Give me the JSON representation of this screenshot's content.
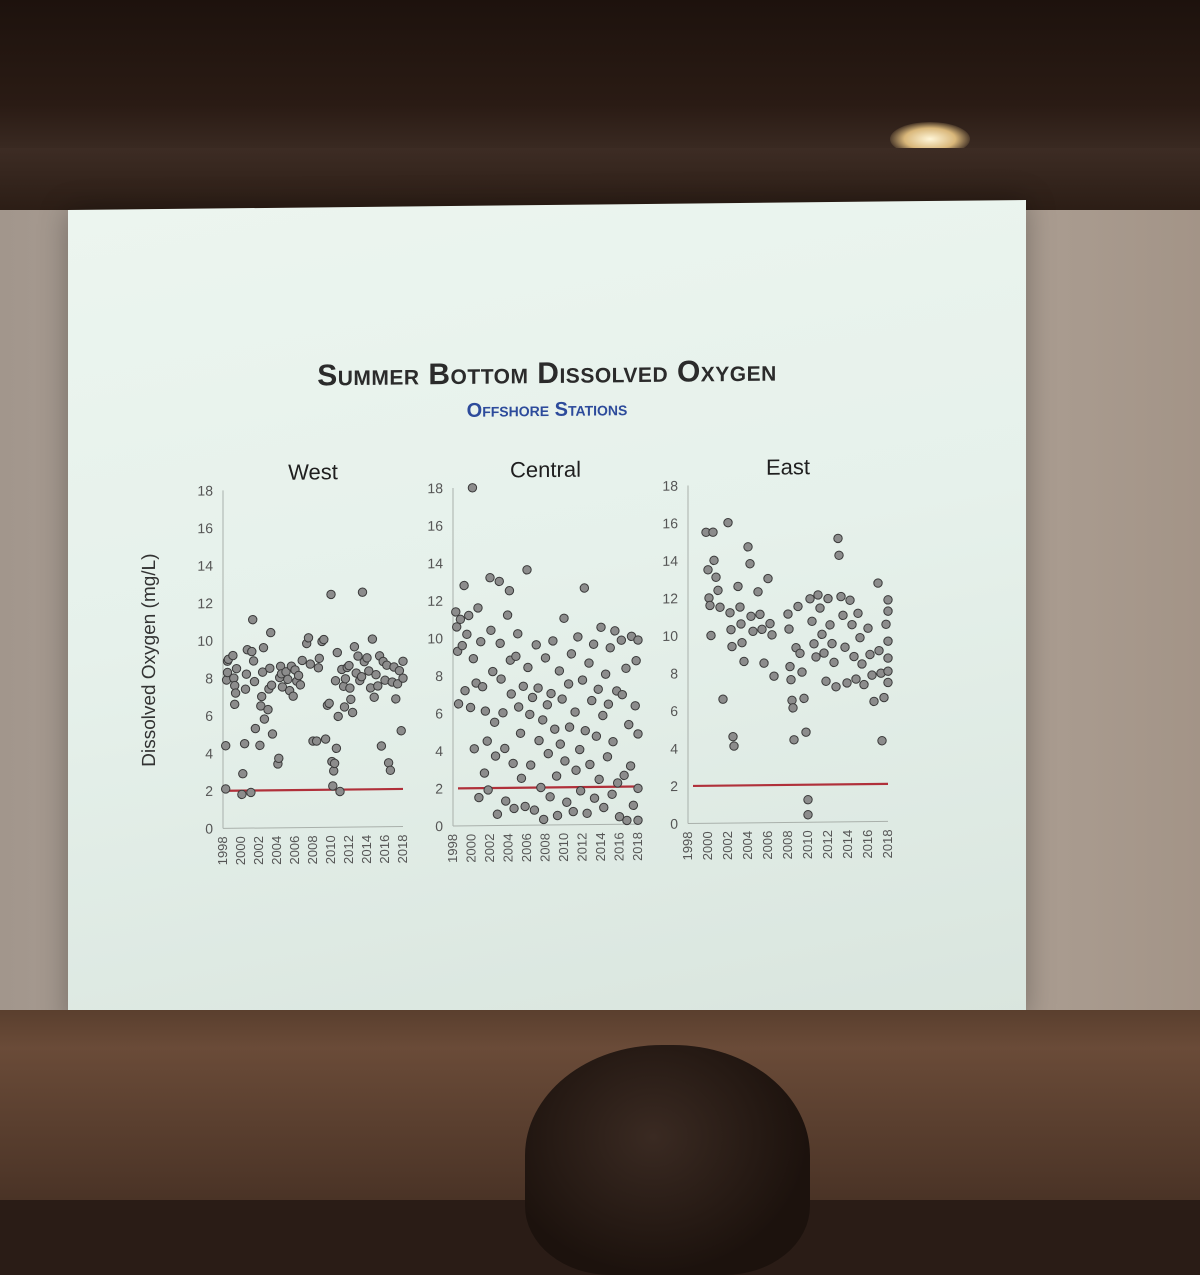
{
  "slide": {
    "title": "Summer Bottom Dissolved Oxygen",
    "subtitle": "Offshore Stations"
  },
  "colors": {
    "point_fill": "#8c8c8c",
    "point_stroke": "#3a3a3a",
    "threshold_line": "#b0303a",
    "axis": "#a9b0ab",
    "subtitle": "#2d4b9b"
  },
  "chart_data": [
    {
      "type": "scatter",
      "title": "West",
      "xlabel": "",
      "ylabel": "Dissolved Oxygen (mg/L)",
      "xlim": [
        1998,
        2018
      ],
      "ylim": [
        0,
        18
      ],
      "x_ticks": [
        "1998",
        "2000",
        "2002",
        "2004",
        "2006",
        "2008",
        "2010",
        "2012",
        "2014",
        "2016",
        "2018"
      ],
      "y_ticks": [
        "0",
        "2",
        "4",
        "6",
        "8",
        "10",
        "12",
        "14",
        "16",
        "18"
      ],
      "threshold": 2,
      "points": [
        [
          1998.3,
          2.1
        ],
        [
          1998.3,
          4.4
        ],
        [
          1998.4,
          7.9
        ],
        [
          1998.5,
          8.9
        ],
        [
          1998.5,
          8.3
        ],
        [
          1998.6,
          9.0
        ],
        [
          1999.1,
          9.2
        ],
        [
          1999.2,
          8.0
        ],
        [
          1999.3,
          7.6
        ],
        [
          1999.3,
          6.6
        ],
        [
          1999.4,
          7.2
        ],
        [
          1999.5,
          8.5
        ],
        [
          2000.1,
          1.8
        ],
        [
          2000.2,
          2.9
        ],
        [
          2000.4,
          4.5
        ],
        [
          2000.5,
          7.4
        ],
        [
          2000.6,
          8.2
        ],
        [
          2000.7,
          9.5
        ],
        [
          2001.1,
          1.9
        ],
        [
          2001.2,
          9.4
        ],
        [
          2001.3,
          11.1
        ],
        [
          2001.4,
          8.9
        ],
        [
          2001.5,
          7.8
        ],
        [
          2001.6,
          5.3
        ],
        [
          2002.1,
          4.4
        ],
        [
          2002.2,
          6.5
        ],
        [
          2002.3,
          7.0
        ],
        [
          2002.4,
          8.3
        ],
        [
          2002.5,
          9.6
        ],
        [
          2002.6,
          5.8
        ],
        [
          2003.0,
          6.3
        ],
        [
          2003.1,
          7.4
        ],
        [
          2003.2,
          8.5
        ],
        [
          2003.3,
          10.4
        ],
        [
          2003.4,
          7.6
        ],
        [
          2003.5,
          5.0
        ],
        [
          2004.1,
          3.4
        ],
        [
          2004.2,
          3.7
        ],
        [
          2004.3,
          8.0
        ],
        [
          2004.4,
          8.6
        ],
        [
          2004.5,
          8.2
        ],
        [
          2004.6,
          7.5
        ],
        [
          2005.0,
          8.3
        ],
        [
          2005.2,
          7.9
        ],
        [
          2005.4,
          7.3
        ],
        [
          2005.6,
          8.6
        ],
        [
          2005.8,
          7.0
        ],
        [
          2006.0,
          8.4
        ],
        [
          2006.2,
          7.8
        ],
        [
          2006.4,
          8.1
        ],
        [
          2006.6,
          7.6
        ],
        [
          2006.8,
          8.9
        ],
        [
          2007.3,
          9.8
        ],
        [
          2007.5,
          10.1
        ],
        [
          2007.7,
          8.7
        ],
        [
          2008.0,
          4.6
        ],
        [
          2008.4,
          4.6
        ],
        [
          2008.6,
          8.5
        ],
        [
          2008.7,
          9.0
        ],
        [
          2009.0,
          9.9
        ],
        [
          2009.2,
          10.0
        ],
        [
          2009.4,
          4.7
        ],
        [
          2009.6,
          6.5
        ],
        [
          2009.8,
          6.6
        ],
        [
          2010.0,
          12.4
        ],
        [
          2010.1,
          3.5
        ],
        [
          2010.2,
          2.2
        ],
        [
          2010.3,
          3.0
        ],
        [
          2010.4,
          3.4
        ],
        [
          2010.5,
          7.8
        ],
        [
          2010.6,
          4.2
        ],
        [
          2010.7,
          9.3
        ],
        [
          2010.8,
          5.9
        ],
        [
          2011.0,
          1.9
        ],
        [
          2011.2,
          8.4
        ],
        [
          2011.4,
          7.5
        ],
        [
          2011.5,
          6.4
        ],
        [
          2011.6,
          7.9
        ],
        [
          2011.8,
          8.5
        ],
        [
          2012.0,
          8.6
        ],
        [
          2012.1,
          7.4
        ],
        [
          2012.2,
          6.8
        ],
        [
          2012.4,
          6.1
        ],
        [
          2012.6,
          9.6
        ],
        [
          2012.8,
          8.2
        ],
        [
          2013.0,
          9.1
        ],
        [
          2013.2,
          7.8
        ],
        [
          2013.4,
          8.0
        ],
        [
          2013.5,
          12.5
        ],
        [
          2013.7,
          8.8
        ],
        [
          2014.0,
          9.0
        ],
        [
          2014.2,
          8.3
        ],
        [
          2014.4,
          7.4
        ],
        [
          2014.6,
          10.0
        ],
        [
          2014.8,
          6.9
        ],
        [
          2015.0,
          8.1
        ],
        [
          2015.2,
          7.5
        ],
        [
          2015.4,
          9.1
        ],
        [
          2015.6,
          4.3
        ],
        [
          2015.8,
          8.8
        ],
        [
          2016.0,
          7.8
        ],
        [
          2016.2,
          8.6
        ],
        [
          2016.4,
          3.4
        ],
        [
          2016.6,
          3.0
        ],
        [
          2016.8,
          7.7
        ],
        [
          2017.0,
          8.5
        ],
        [
          2017.2,
          6.8
        ],
        [
          2017.4,
          7.6
        ],
        [
          2017.6,
          8.3
        ],
        [
          2017.8,
          5.1
        ],
        [
          2018.0,
          8.8
        ],
        [
          2018.0,
          7.9
        ]
      ]
    },
    {
      "type": "scatter",
      "title": "Central",
      "xlabel": "",
      "ylabel": "",
      "xlim": [
        1998,
        2018
      ],
      "ylim": [
        0,
        18
      ],
      "x_ticks": [
        "1998",
        "2000",
        "2002",
        "2004",
        "2006",
        "2008",
        "2010",
        "2012",
        "2014",
        "2016",
        "2018"
      ],
      "y_ticks": [
        "0",
        "2",
        "4",
        "6",
        "8",
        "10",
        "12",
        "14",
        "16",
        "18"
      ],
      "threshold": 2,
      "points": [
        [
          1998.3,
          11.4
        ],
        [
          1998.4,
          10.6
        ],
        [
          1998.5,
          9.3
        ],
        [
          1998.6,
          6.5
        ],
        [
          1998.8,
          11.0
        ],
        [
          1999.0,
          9.6
        ],
        [
          1999.2,
          12.8
        ],
        [
          1999.3,
          7.2
        ],
        [
          1999.5,
          10.2
        ],
        [
          1999.7,
          11.2
        ],
        [
          1999.9,
          6.3
        ],
        [
          2000.1,
          18.0
        ],
        [
          2000.2,
          8.9
        ],
        [
          2000.3,
          4.1
        ],
        [
          2000.5,
          7.6
        ],
        [
          2000.7,
          11.6
        ],
        [
          2000.8,
          1.5
        ],
        [
          2001.0,
          9.8
        ],
        [
          2001.2,
          7.4
        ],
        [
          2001.4,
          2.8
        ],
        [
          2001.5,
          6.1
        ],
        [
          2001.7,
          4.5
        ],
        [
          2001.8,
          1.9
        ],
        [
          2002.0,
          13.2
        ],
        [
          2002.1,
          10.4
        ],
        [
          2002.3,
          8.2
        ],
        [
          2002.5,
          5.5
        ],
        [
          2002.6,
          3.7
        ],
        [
          2002.8,
          0.6
        ],
        [
          2003.0,
          13.0
        ],
        [
          2003.1,
          9.7
        ],
        [
          2003.2,
          7.8
        ],
        [
          2003.4,
          6.0
        ],
        [
          2003.6,
          4.1
        ],
        [
          2003.7,
          1.3
        ],
        [
          2003.9,
          11.2
        ],
        [
          2004.1,
          12.5
        ],
        [
          2004.2,
          8.8
        ],
        [
          2004.3,
          7.0
        ],
        [
          2004.5,
          3.3
        ],
        [
          2004.6,
          0.9
        ],
        [
          2004.8,
          9.0
        ],
        [
          2005.0,
          10.2
        ],
        [
          2005.1,
          6.3
        ],
        [
          2005.3,
          4.9
        ],
        [
          2005.4,
          2.5
        ],
        [
          2005.6,
          7.4
        ],
        [
          2005.8,
          1.0
        ],
        [
          2006.0,
          13.6
        ],
        [
          2006.1,
          8.4
        ],
        [
          2006.3,
          5.9
        ],
        [
          2006.4,
          3.2
        ],
        [
          2006.6,
          6.8
        ],
        [
          2006.8,
          0.8
        ],
        [
          2007.0,
          9.6
        ],
        [
          2007.2,
          7.3
        ],
        [
          2007.3,
          4.5
        ],
        [
          2007.5,
          2.0
        ],
        [
          2007.7,
          5.6
        ],
        [
          2007.8,
          0.3
        ],
        [
          2008.0,
          8.9
        ],
        [
          2008.2,
          6.4
        ],
        [
          2008.3,
          3.8
        ],
        [
          2008.5,
          1.5
        ],
        [
          2008.6,
          7.0
        ],
        [
          2008.8,
          9.8
        ],
        [
          2009.0,
          5.1
        ],
        [
          2009.2,
          2.6
        ],
        [
          2009.3,
          0.5
        ],
        [
          2009.5,
          8.2
        ],
        [
          2009.6,
          4.3
        ],
        [
          2009.8,
          6.7
        ],
        [
          2010.0,
          11.0
        ],
        [
          2010.1,
          3.4
        ],
        [
          2010.3,
          1.2
        ],
        [
          2010.5,
          7.5
        ],
        [
          2010.6,
          5.2
        ],
        [
          2010.8,
          9.1
        ],
        [
          2011.0,
          0.7
        ],
        [
          2011.2,
          6.0
        ],
        [
          2011.3,
          2.9
        ],
        [
          2011.5,
          10.0
        ],
        [
          2011.7,
          4.0
        ],
        [
          2011.8,
          1.8
        ],
        [
          2012.0,
          7.7
        ],
        [
          2012.2,
          12.6
        ],
        [
          2012.3,
          5.0
        ],
        [
          2012.5,
          0.6
        ],
        [
          2012.7,
          8.6
        ],
        [
          2012.8,
          3.2
        ],
        [
          2013.0,
          6.6
        ],
        [
          2013.2,
          9.6
        ],
        [
          2013.3,
          1.4
        ],
        [
          2013.5,
          4.7
        ],
        [
          2013.7,
          7.2
        ],
        [
          2013.8,
          2.4
        ],
        [
          2014.0,
          10.5
        ],
        [
          2014.2,
          5.8
        ],
        [
          2014.3,
          0.9
        ],
        [
          2014.5,
          8.0
        ],
        [
          2014.7,
          3.6
        ],
        [
          2014.8,
          6.4
        ],
        [
          2015.0,
          9.4
        ],
        [
          2015.2,
          1.6
        ],
        [
          2015.3,
          4.4
        ],
        [
          2015.5,
          10.3
        ],
        [
          2015.7,
          7.1
        ],
        [
          2015.8,
          2.2
        ],
        [
          2016.0,
          0.4
        ],
        [
          2016.2,
          9.8
        ],
        [
          2016.3,
          6.9
        ],
        [
          2016.5,
          2.6
        ],
        [
          2016.7,
          8.3
        ],
        [
          2016.8,
          0.2
        ],
        [
          2017.0,
          5.3
        ],
        [
          2017.2,
          3.1
        ],
        [
          2017.3,
          10.0
        ],
        [
          2017.5,
          1.0
        ],
        [
          2017.7,
          6.3
        ],
        [
          2017.8,
          8.7
        ],
        [
          2018.0,
          9.8
        ],
        [
          2018.0,
          4.8
        ],
        [
          2018.0,
          1.9
        ],
        [
          2018.0,
          0.2
        ]
      ]
    },
    {
      "type": "scatter",
      "title": "East",
      "xlabel": "",
      "ylabel": "",
      "xlim": [
        1998,
        2018
      ],
      "ylim": [
        0,
        18
      ],
      "x_ticks": [
        "1998",
        "2000",
        "2002",
        "2004",
        "2006",
        "2008",
        "2010",
        "2012",
        "2014",
        "2016",
        "2018"
      ],
      "y_ticks": [
        "0",
        "2",
        "4",
        "6",
        "8",
        "10",
        "12",
        "14",
        "16",
        "18"
      ],
      "threshold": 2,
      "points": [
        [
          1999.8,
          15.5
        ],
        [
          2000.0,
          13.5
        ],
        [
          2000.1,
          12.0
        ],
        [
          2000.2,
          11.6
        ],
        [
          2000.3,
          10.0
        ],
        [
          2000.5,
          15.5
        ],
        [
          2000.6,
          14.0
        ],
        [
          2000.8,
          13.1
        ],
        [
          2001.0,
          12.4
        ],
        [
          2001.2,
          11.5
        ],
        [
          2001.5,
          6.6
        ],
        [
          2002.0,
          16.0
        ],
        [
          2002.2,
          11.2
        ],
        [
          2002.3,
          10.3
        ],
        [
          2002.4,
          9.4
        ],
        [
          2002.5,
          4.6
        ],
        [
          2002.6,
          4.1
        ],
        [
          2003.0,
          12.6
        ],
        [
          2003.2,
          11.5
        ],
        [
          2003.3,
          10.6
        ],
        [
          2003.4,
          9.6
        ],
        [
          2003.6,
          8.6
        ],
        [
          2004.0,
          14.7
        ],
        [
          2004.2,
          13.8
        ],
        [
          2004.3,
          11.0
        ],
        [
          2004.5,
          10.2
        ],
        [
          2005.0,
          12.3
        ],
        [
          2005.2,
          11.1
        ],
        [
          2005.4,
          10.3
        ],
        [
          2005.6,
          8.5
        ],
        [
          2006.0,
          13.0
        ],
        [
          2006.2,
          10.6
        ],
        [
          2006.4,
          10.0
        ],
        [
          2006.6,
          7.8
        ],
        [
          2008.0,
          11.1
        ],
        [
          2008.1,
          10.3
        ],
        [
          2008.2,
          8.3
        ],
        [
          2008.3,
          7.6
        ],
        [
          2008.4,
          6.5
        ],
        [
          2008.5,
          6.1
        ],
        [
          2008.6,
          4.4
        ],
        [
          2008.8,
          9.3
        ],
        [
          2009.0,
          11.5
        ],
        [
          2009.2,
          9.0
        ],
        [
          2009.4,
          8.0
        ],
        [
          2009.6,
          6.6
        ],
        [
          2009.8,
          4.8
        ],
        [
          2010.0,
          1.2
        ],
        [
          2010.0,
          0.4
        ],
        [
          2010.2,
          11.9
        ],
        [
          2010.4,
          10.7
        ],
        [
          2010.6,
          9.5
        ],
        [
          2010.8,
          8.8
        ],
        [
          2011.0,
          12.1
        ],
        [
          2011.2,
          11.4
        ],
        [
          2011.4,
          10.0
        ],
        [
          2011.6,
          9.0
        ],
        [
          2011.8,
          7.5
        ],
        [
          2012.0,
          11.9
        ],
        [
          2012.2,
          10.5
        ],
        [
          2012.4,
          9.5
        ],
        [
          2012.6,
          8.5
        ],
        [
          2012.8,
          7.2
        ],
        [
          2013.0,
          15.1
        ],
        [
          2013.1,
          14.2
        ],
        [
          2013.3,
          12.0
        ],
        [
          2013.5,
          11.0
        ],
        [
          2013.7,
          9.3
        ],
        [
          2013.9,
          7.4
        ],
        [
          2014.2,
          11.8
        ],
        [
          2014.4,
          10.5
        ],
        [
          2014.6,
          8.8
        ],
        [
          2014.8,
          7.6
        ],
        [
          2015.0,
          11.1
        ],
        [
          2015.2,
          9.8
        ],
        [
          2015.4,
          8.4
        ],
        [
          2015.6,
          7.3
        ],
        [
          2016.0,
          10.3
        ],
        [
          2016.2,
          8.9
        ],
        [
          2016.4,
          7.8
        ],
        [
          2016.6,
          6.4
        ],
        [
          2017.0,
          12.7
        ],
        [
          2017.1,
          9.1
        ],
        [
          2017.3,
          7.9
        ],
        [
          2017.4,
          4.3
        ],
        [
          2017.6,
          6.6
        ],
        [
          2017.8,
          10.5
        ],
        [
          2018.0,
          11.8
        ],
        [
          2018.0,
          11.2
        ],
        [
          2018.0,
          9.6
        ],
        [
          2018.0,
          8.7
        ],
        [
          2018.0,
          8.0
        ],
        [
          2018.0,
          7.4
        ]
      ]
    }
  ]
}
